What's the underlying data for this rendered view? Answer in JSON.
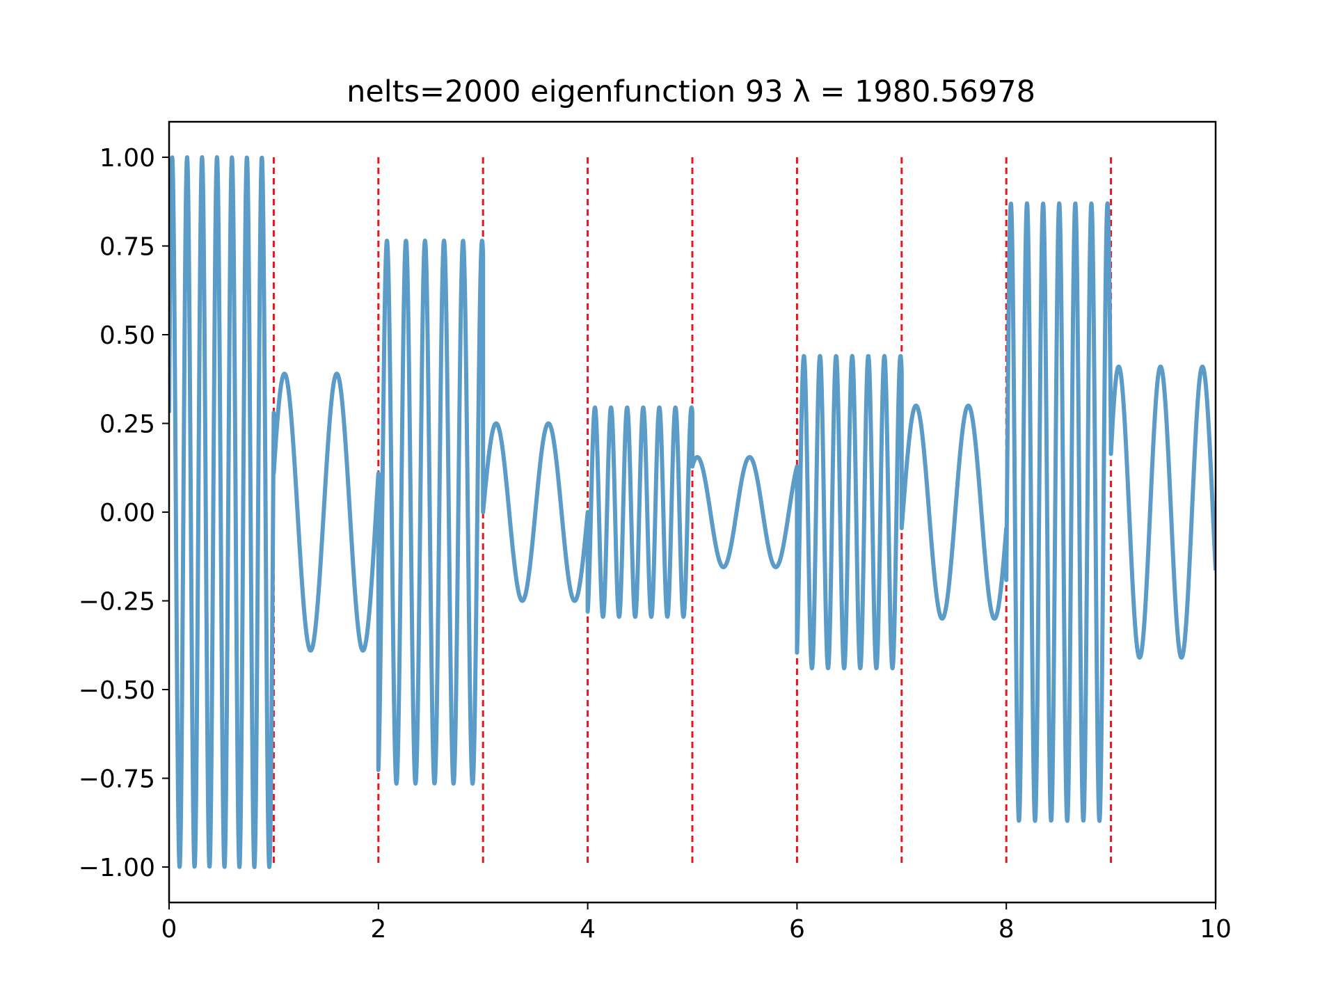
{
  "chart_data": {
    "type": "line",
    "title": "nelts=2000  eigenfunction 93  λ = 1980.56978",
    "xlabel": "",
    "ylabel": "",
    "xlim": [
      0,
      10
    ],
    "ylim": [
      -1.1,
      1.1
    ],
    "grid": false,
    "x_ticks": [
      0,
      2,
      4,
      6,
      8,
      10
    ],
    "x_tick_labels": [
      "0",
      "2",
      "4",
      "6",
      "8",
      "10"
    ],
    "y_ticks": [
      1.0,
      0.75,
      0.5,
      0.25,
      0.0,
      -0.25,
      -0.5,
      -0.75,
      -1.0
    ],
    "y_tick_labels": [
      "1.00",
      "0.75",
      "0.50",
      "0.25",
      "0.00",
      "−0.25",
      "−0.50",
      "−0.75",
      "−1.00"
    ],
    "boundaries": [
      1,
      2,
      3,
      4,
      5,
      6,
      7,
      8,
      9
    ],
    "boundary_ymin": -1.0,
    "boundary_ymax": 1.0,
    "boundary_color": "#e8151b",
    "line_color": "#5a9bc7",
    "segments": [
      {
        "x_start": 0,
        "x_end": 1,
        "amplitude": 1.0,
        "cycles": 7,
        "phase": 0.28
      },
      {
        "x_start": 1,
        "x_end": 2,
        "amplitude": 0.39,
        "cycles": 2,
        "phase": 0.28
      },
      {
        "x_start": 2,
        "x_end": 3,
        "amplitude": 0.765,
        "cycles": 5.5,
        "phase": -0.95
      },
      {
        "x_start": 3,
        "x_end": 4,
        "amplitude": 0.25,
        "cycles": 2,
        "phase": 0.0
      },
      {
        "x_start": 4,
        "x_end": 5,
        "amplitude": 0.295,
        "cycles": 6.5,
        "phase": -0.95
      },
      {
        "x_start": 5,
        "x_end": 6,
        "amplitude": 0.155,
        "cycles": 2,
        "phase": 0.83
      },
      {
        "x_start": 6,
        "x_end": 7,
        "amplitude": 0.44,
        "cycles": 6.5,
        "phase": -0.9
      },
      {
        "x_start": 7,
        "x_end": 8,
        "amplitude": 0.3,
        "cycles": 2,
        "phase": -0.15
      },
      {
        "x_start": 8,
        "x_end": 9,
        "amplitude": 0.87,
        "cycles": 6.5,
        "phase": -0.22
      },
      {
        "x_start": 9,
        "x_end": 10,
        "amplitude": 0.41,
        "cycles": 2.5,
        "phase": 0.4
      }
    ]
  }
}
